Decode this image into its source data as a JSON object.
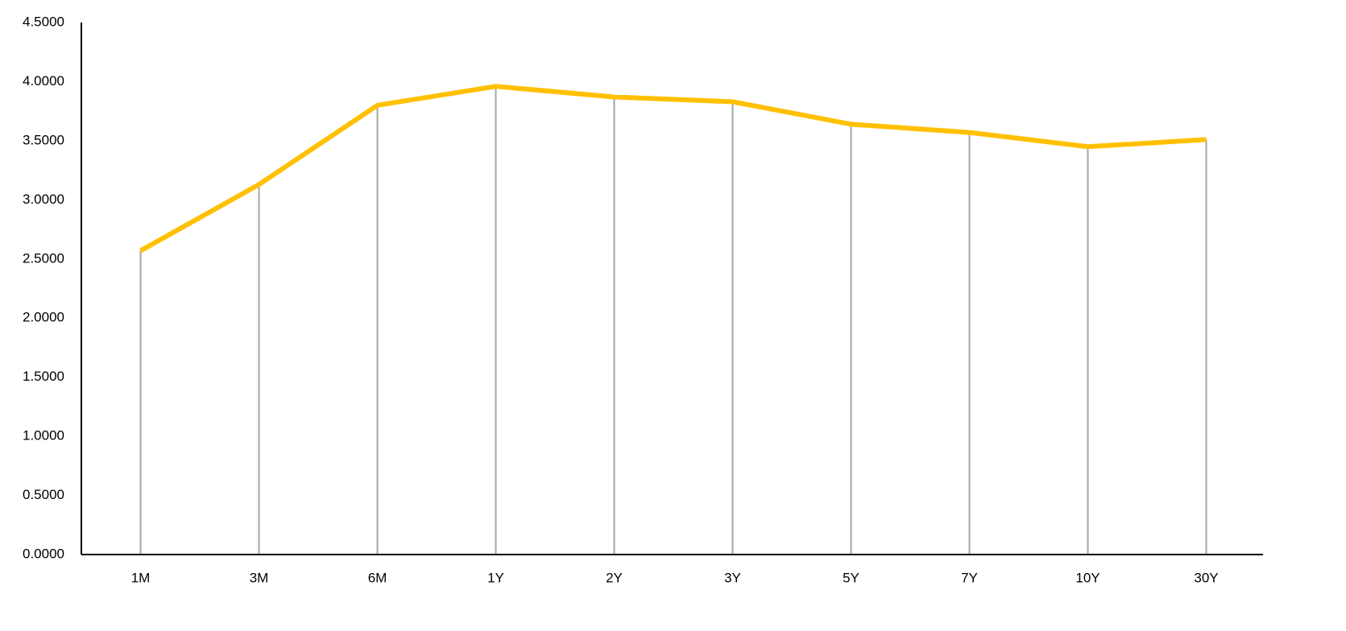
{
  "chart_data": {
    "type": "line",
    "categories": [
      "1M",
      "3M",
      "6M",
      "1Y",
      "2Y",
      "3Y",
      "5Y",
      "7Y",
      "10Y",
      "30Y"
    ],
    "values": [
      2.57,
      3.13,
      3.8,
      3.96,
      3.87,
      3.83,
      3.64,
      3.57,
      3.45,
      3.51
    ],
    "color": "#FFC000",
    "ylim": [
      0,
      4.5
    ],
    "yticks": [
      {
        "value": 0,
        "label": "0.0000"
      },
      {
        "value": 0.5,
        "label": "0.5000"
      },
      {
        "value": 1,
        "label": "1.0000"
      },
      {
        "value": 1.5,
        "label": "1.5000"
      },
      {
        "value": 2,
        "label": "2.0000"
      },
      {
        "value": 2.5,
        "label": "2.5000"
      },
      {
        "value": 3,
        "label": "3.0000"
      },
      {
        "value": 3.5,
        "label": "3.5000"
      },
      {
        "value": 4,
        "label": "4.0000"
      },
      {
        "value": 4.5,
        "label": "4.5000"
      }
    ],
    "grid": false,
    "drop_lines": true,
    "drop_line_color": "#A6A6A6"
  }
}
